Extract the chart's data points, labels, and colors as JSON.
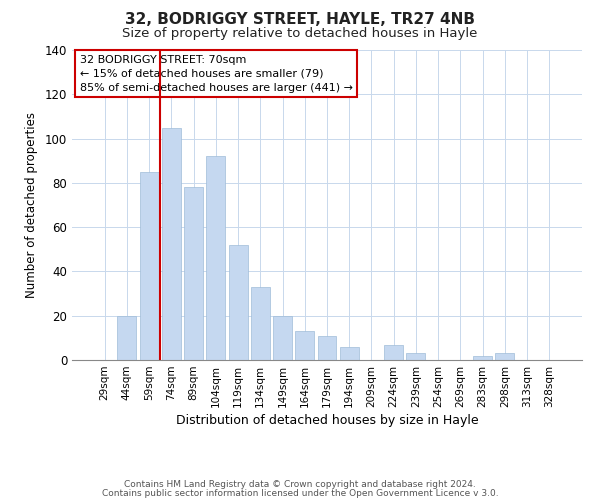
{
  "title": "32, BODRIGGY STREET, HAYLE, TR27 4NB",
  "subtitle": "Size of property relative to detached houses in Hayle",
  "xlabel": "Distribution of detached houses by size in Hayle",
  "ylabel": "Number of detached properties",
  "bar_labels": [
    "29sqm",
    "44sqm",
    "59sqm",
    "74sqm",
    "89sqm",
    "104sqm",
    "119sqm",
    "134sqm",
    "149sqm",
    "164sqm",
    "179sqm",
    "194sqm",
    "209sqm",
    "224sqm",
    "239sqm",
    "254sqm",
    "269sqm",
    "283sqm",
    "298sqm",
    "313sqm",
    "328sqm"
  ],
  "bar_heights": [
    0,
    20,
    85,
    105,
    78,
    92,
    52,
    33,
    20,
    13,
    11,
    6,
    0,
    7,
    3,
    0,
    0,
    2,
    3,
    0,
    0
  ],
  "bar_color": "#c5d8f0",
  "bar_edge_color": "#a0bcd8",
  "red_line_x": 2.5,
  "ylim": [
    0,
    140
  ],
  "yticks": [
    0,
    20,
    40,
    60,
    80,
    100,
    120,
    140
  ],
  "annotation_text": "32 BODRIGGY STREET: 70sqm\n← 15% of detached houses are smaller (79)\n85% of semi-detached houses are larger (441) →",
  "annotation_box_color": "#ffffff",
  "annotation_box_edge": "#cc0000",
  "red_line_color": "#cc0000",
  "footer_line1": "Contains HM Land Registry data © Crown copyright and database right 2024.",
  "footer_line2": "Contains public sector information licensed under the Open Government Licence v 3.0.",
  "background_color": "#ffffff",
  "grid_color": "#c8d8ec",
  "title_fontsize": 11,
  "subtitle_fontsize": 9.5
}
